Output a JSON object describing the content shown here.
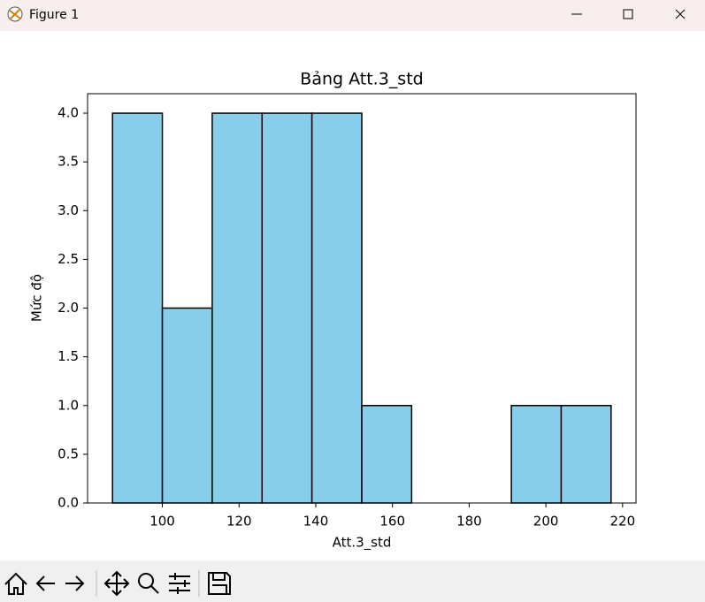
{
  "window": {
    "title": "Figure 1"
  },
  "chart_data": {
    "type": "histogram",
    "title": "Bảng Att.3_std",
    "x_label": "Att.3_std",
    "y_label": "Mức độ",
    "bins": [
      87,
      100,
      113,
      126,
      139,
      152,
      165,
      178,
      191,
      204,
      217
    ],
    "values": [
      4,
      2,
      4,
      4,
      4,
      1,
      0,
      0,
      1,
      1
    ],
    "color": "#87ceeb",
    "edgecolor": "#000000",
    "xlim": [
      80.5,
      223.5
    ],
    "ylim": [
      0,
      4.2
    ],
    "xticks": [
      100,
      120,
      140,
      160,
      180,
      200,
      220
    ],
    "yticks": [
      {
        "value": 0,
        "label": "0.0"
      },
      0.5,
      {
        "value": 1,
        "label": "1.0"
      },
      1.5,
      {
        "value": 2,
        "label": "2.0"
      },
      2.5,
      {
        "value": 3,
        "label": "3.0"
      },
      3.5,
      {
        "value": 4,
        "label": "4.0"
      }
    ],
    "grid": false
  }
}
